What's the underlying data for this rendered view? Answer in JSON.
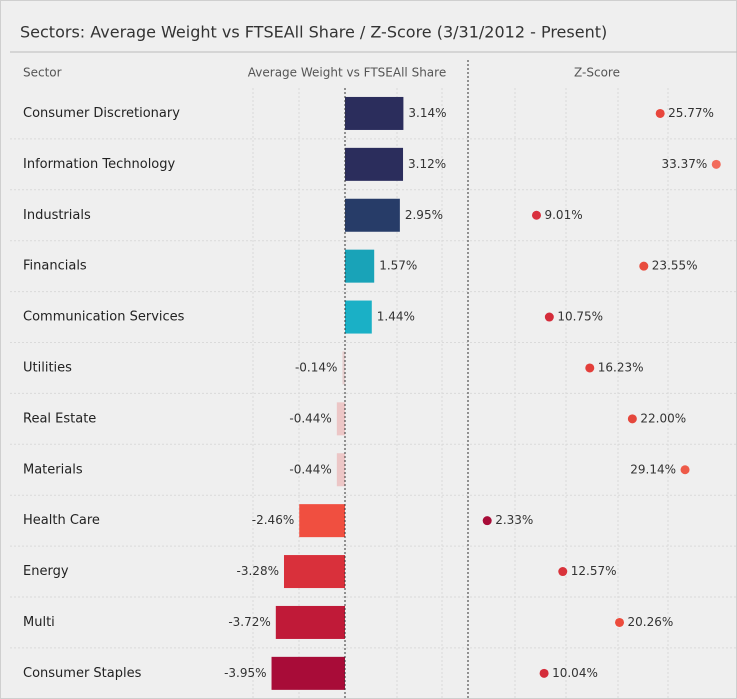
{
  "title": "Sectors:  Average Weight vs FTSEAll Share / Z-Score (3/31/2012 - Present)",
  "headers": [
    "Sector",
    "Average Weight vs FTSEAll Share",
    "Z-Score"
  ],
  "chart_data": [
    {
      "type": "bar",
      "categories": [
        "Consumer Discretionary",
        "Information Technology",
        "Industrials",
        "Financials",
        "Communication Services",
        "Utilities",
        "Real Estate",
        "Materials",
        "Health Care",
        "Energy",
        "Multi",
        "Consumer Staples"
      ],
      "values": [
        3.14,
        3.12,
        2.95,
        1.57,
        1.44,
        -0.14,
        -0.44,
        -0.44,
        -2.46,
        -3.28,
        -3.72,
        -3.95
      ],
      "value_labels": [
        "3.14%",
        "3.12%",
        "2.95%",
        "1.57%",
        "1.44%",
        "-0.14%",
        "-0.44%",
        "-0.44%",
        "-2.46%",
        "-3.28%",
        "-3.72%",
        "-3.95%"
      ],
      "colors": [
        "#2b2d5c",
        "#2b2d5c",
        "#273c68",
        "#19a3b8",
        "#1ab0c6",
        "#e6cfcf",
        "#ecc6c6",
        "#ecc6c6",
        "#f04f40",
        "#d9303b",
        "#c01a38",
        "#a80c38"
      ]
    },
    {
      "type": "dot",
      "values": [
        25.77,
        33.37,
        9.01,
        23.55,
        10.75,
        16.23,
        22.0,
        29.14,
        2.33,
        12.57,
        20.26,
        10.04
      ],
      "value_labels": [
        "25.77%",
        "33.37%",
        "9.01%",
        "23.55%",
        "10.75%",
        "16.23%",
        "22.00%",
        "29.14%",
        "2.33%",
        "12.57%",
        "20.26%",
        "10.04%"
      ],
      "colors": [
        "#e8463c",
        "#f26b5b",
        "#d9303e",
        "#e84c3d",
        "#d42c3a",
        "#e33e3a",
        "#e5473c",
        "#ee5a48",
        "#a80c38",
        "#d9333b",
        "#ec4b3c",
        "#d42c3a"
      ]
    }
  ]
}
